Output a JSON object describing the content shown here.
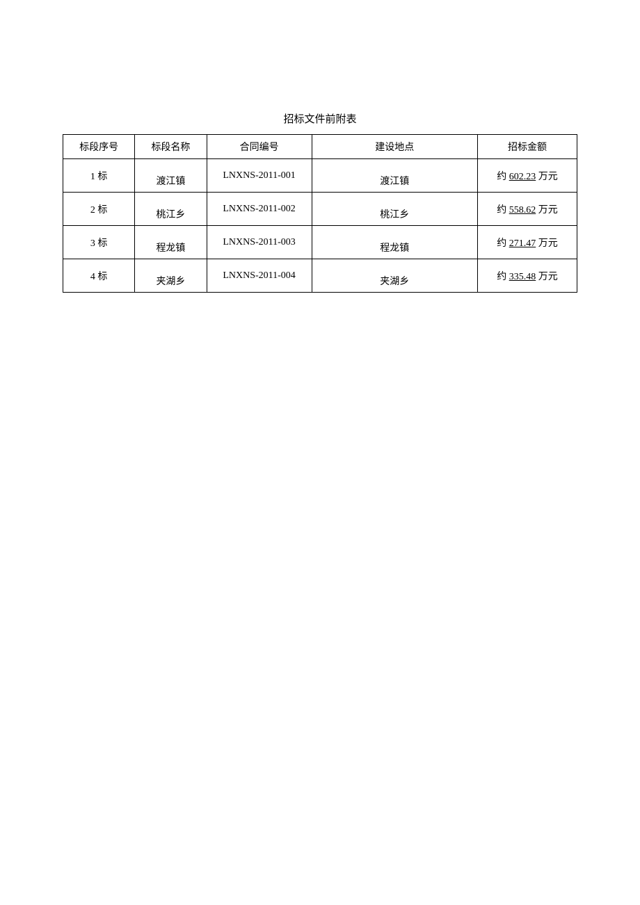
{
  "title": "招标文件前附表",
  "table": {
    "columns": [
      "标段序号",
      "标段名称",
      "合同编号",
      "建设地点",
      "招标金额"
    ],
    "rows": [
      {
        "seq": "1 标",
        "name": "渡江镇",
        "contract": "LNXNS-2011-001",
        "location": "渡江镇",
        "amount_prefix": "约 ",
        "amount_value": "602.23",
        "amount_suffix": " 万元"
      },
      {
        "seq": "2 标",
        "name": "桃江乡",
        "contract": "LNXNS-2011-002",
        "location": "桃江乡",
        "amount_prefix": "约 ",
        "amount_value": "558.62",
        "amount_suffix": " 万元"
      },
      {
        "seq": "3 标",
        "name": "程龙镇",
        "contract": "LNXNS-2011-003",
        "location": "程龙镇",
        "amount_prefix": "约 ",
        "amount_value": "271.47",
        "amount_suffix": " 万元"
      },
      {
        "seq": "4 标",
        "name": "夹湖乡",
        "contract": "LNXNS-2011-004",
        "location": "夹湖乡",
        "amount_prefix": "约 ",
        "amount_value": "335.48",
        "amount_suffix": " 万元"
      }
    ]
  },
  "styling": {
    "background_color": "#ffffff",
    "border_color": "#000000",
    "text_color": "#000000",
    "title_fontsize": 15,
    "cell_fontsize": 14,
    "header_row_height": 35,
    "data_row_height": 48,
    "column_widths_percent": [
      13,
      13,
      19,
      30,
      18
    ]
  }
}
